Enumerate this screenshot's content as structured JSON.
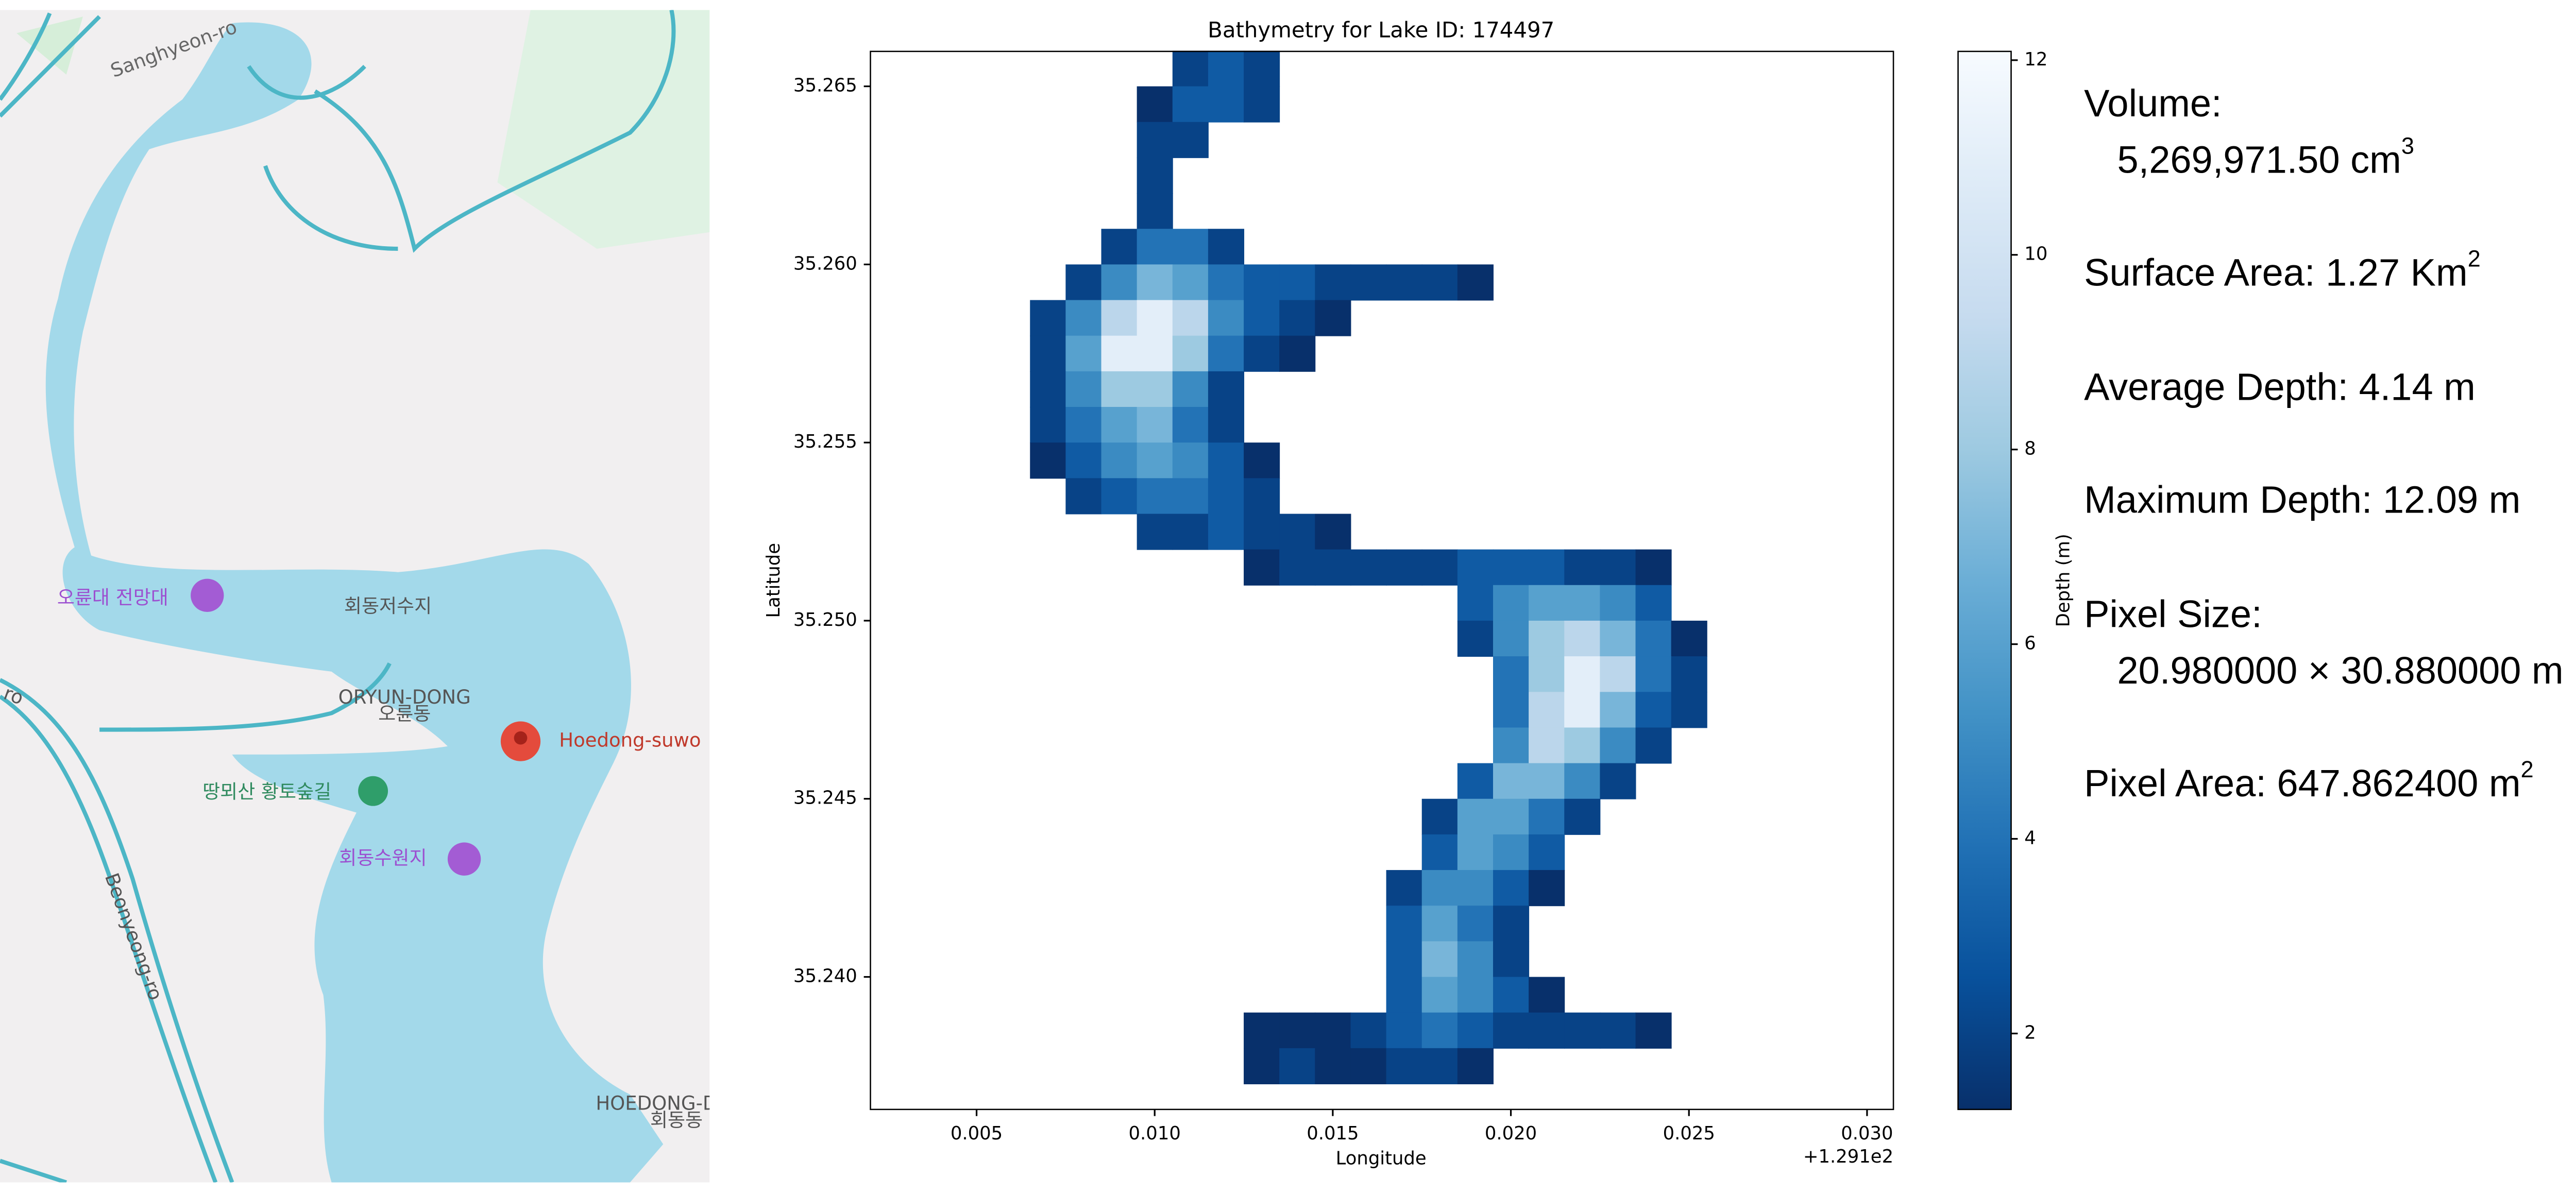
{
  "map": {
    "labels": [
      "Sanghyeon-ro",
      "오륜대 전망대",
      "회동저수지",
      "ORYUN-DONG",
      "오륜동",
      "Hoedong-suwo",
      "땅뫼산 황토숲길",
      "회동수원지",
      "Beonyeong-ro",
      "HOEDONG-D",
      "회동동",
      "ro"
    ]
  },
  "chart_data": {
    "type": "heatmap",
    "title": "Bathymetry for Lake ID: 174497",
    "x_label": "Longitude",
    "y_label": "Latitude",
    "x_offset_label": "+1.291e2",
    "xlim": [
      0.00202,
      0.03074
    ],
    "ylim": [
      35.23628,
      35.26598
    ],
    "xticks": [
      0.005,
      {
        "value": 0.01,
        "label": "0.010"
      },
      0.015,
      {
        "value": 0.02,
        "label": "0.020"
      },
      0.025,
      {
        "value": 0.03,
        "label": "0.030"
      }
    ],
    "yticks": [
      {
        "value": 35.24,
        "label": "35.240"
      },
      35.245,
      {
        "value": 35.25,
        "label": "35.250"
      },
      35.255,
      {
        "value": 35.26,
        "label": "35.260"
      },
      35.265
    ],
    "x": [
      0.007,
      0.008,
      0.009,
      0.01,
      0.011,
      0.012,
      0.013,
      0.014,
      0.015,
      0.016,
      0.017,
      0.018,
      0.019,
      0.02,
      0.021,
      0.022,
      0.023,
      0.024,
      0.025
    ],
    "y": [
      35.2655,
      35.2645,
      35.2635,
      35.2625,
      35.2615,
      35.2605,
      35.2595,
      35.2585,
      35.2575,
      35.2565,
      35.2555,
      35.2545,
      35.2535,
      35.2525,
      35.2515,
      35.2505,
      35.2495,
      35.2485,
      35.2475,
      35.2465,
      35.2455,
      35.2445,
      35.2435,
      35.2425,
      35.2415,
      35.2405,
      35.2395,
      35.2385,
      35.2375
    ],
    "z": [
      [
        null,
        null,
        null,
        null,
        2,
        3,
        2,
        null,
        null,
        null,
        null,
        null,
        null,
        null,
        null,
        null,
        null,
        null,
        null
      ],
      [
        null,
        null,
        null,
        1,
        3,
        3,
        2,
        null,
        null,
        null,
        null,
        null,
        null,
        null,
        null,
        null,
        null,
        null,
        null
      ],
      [
        null,
        null,
        null,
        2,
        2,
        null,
        null,
        null,
        null,
        null,
        null,
        null,
        null,
        null,
        null,
        null,
        null,
        null,
        null
      ],
      [
        null,
        null,
        null,
        2,
        null,
        null,
        null,
        null,
        null,
        null,
        null,
        null,
        null,
        null,
        null,
        null,
        null,
        null,
        null
      ],
      [
        null,
        null,
        null,
        2,
        null,
        null,
        null,
        null,
        null,
        null,
        null,
        null,
        null,
        null,
        null,
        null,
        null,
        null,
        null
      ],
      [
        null,
        null,
        2,
        4,
        4,
        2,
        null,
        null,
        null,
        null,
        null,
        null,
        null,
        null,
        null,
        null,
        null,
        null,
        null
      ],
      [
        null,
        2,
        5,
        7,
        6,
        4,
        3,
        3,
        2,
        2,
        2,
        2,
        1,
        null,
        null,
        null,
        null,
        null,
        null
      ],
      [
        2,
        5,
        9,
        11,
        9,
        5,
        3,
        2,
        1,
        null,
        null,
        null,
        null,
        null,
        null,
        null,
        null,
        null,
        null
      ],
      [
        2,
        6,
        11,
        11,
        8,
        4,
        2,
        1,
        null,
        null,
        null,
        null,
        null,
        null,
        null,
        null,
        null,
        null,
        null
      ],
      [
        2,
        5,
        8,
        8,
        5,
        2,
        null,
        null,
        null,
        null,
        null,
        null,
        null,
        null,
        null,
        null,
        null,
        null,
        null
      ],
      [
        2,
        4,
        6,
        7,
        4,
        2,
        null,
        null,
        null,
        null,
        null,
        null,
        null,
        null,
        null,
        null,
        null,
        null,
        null
      ],
      [
        1,
        3,
        5,
        6,
        5,
        3,
        1,
        null,
        null,
        null,
        null,
        null,
        null,
        null,
        null,
        null,
        null,
        null,
        null
      ],
      [
        null,
        2,
        3,
        4,
        4,
        3,
        2,
        null,
        null,
        null,
        null,
        null,
        null,
        null,
        null,
        null,
        null,
        null,
        null
      ],
      [
        null,
        null,
        null,
        2,
        2,
        3,
        2,
        2,
        1,
        null,
        null,
        null,
        null,
        null,
        null,
        null,
        null,
        null,
        null
      ],
      [
        null,
        null,
        null,
        null,
        null,
        null,
        1,
        2,
        2,
        2,
        2,
        2,
        3,
        3,
        3,
        2,
        2,
        1,
        null
      ],
      [
        null,
        null,
        null,
        null,
        null,
        null,
        null,
        null,
        null,
        null,
        null,
        null,
        3,
        5,
        6,
        6,
        5,
        3,
        null
      ],
      [
        null,
        null,
        null,
        null,
        null,
        null,
        null,
        null,
        null,
        null,
        null,
        null,
        2,
        5,
        8,
        9,
        7,
        4,
        1
      ],
      [
        null,
        null,
        null,
        null,
        null,
        null,
        null,
        null,
        null,
        null,
        null,
        null,
        null,
        4,
        8,
        11,
        9,
        4,
        2
      ],
      [
        null,
        null,
        null,
        null,
        null,
        null,
        null,
        null,
        null,
        null,
        null,
        null,
        null,
        4,
        9,
        11,
        7,
        3,
        2
      ],
      [
        null,
        null,
        null,
        null,
        null,
        null,
        null,
        null,
        null,
        null,
        null,
        null,
        null,
        5,
        9,
        8,
        5,
        2,
        null
      ],
      [
        null,
        null,
        null,
        null,
        null,
        null,
        null,
        null,
        null,
        null,
        null,
        null,
        3,
        7,
        7,
        5,
        2,
        null,
        null
      ],
      [
        null,
        null,
        null,
        null,
        null,
        null,
        null,
        null,
        null,
        null,
        null,
        2,
        6,
        6,
        4,
        2,
        null,
        null,
        null
      ],
      [
        null,
        null,
        null,
        null,
        null,
        null,
        null,
        null,
        null,
        null,
        null,
        3,
        6,
        5,
        3,
        null,
        null,
        null,
        null
      ],
      [
        null,
        null,
        null,
        null,
        null,
        null,
        null,
        null,
        null,
        null,
        2,
        5,
        5,
        3,
        1,
        null,
        null,
        null,
        null
      ],
      [
        null,
        null,
        null,
        null,
        null,
        null,
        null,
        null,
        null,
        null,
        3,
        6,
        4,
        2,
        null,
        null,
        null,
        null,
        null
      ],
      [
        null,
        null,
        null,
        null,
        null,
        null,
        null,
        null,
        null,
        null,
        3,
        7,
        5,
        2,
        null,
        null,
        null,
        null,
        null
      ],
      [
        null,
        null,
        null,
        null,
        null,
        null,
        null,
        null,
        null,
        null,
        3,
        6,
        5,
        3,
        1,
        null,
        null,
        null,
        null
      ],
      [
        null,
        null,
        null,
        null,
        null,
        null,
        1,
        1,
        1,
        2,
        3,
        4,
        3,
        2,
        2,
        2,
        2,
        1,
        null
      ],
      [
        null,
        null,
        null,
        null,
        null,
        null,
        1,
        2,
        1,
        1,
        2,
        2,
        1,
        null,
        null,
        null,
        null,
        null,
        null
      ]
    ],
    "colorbar": {
      "label": "Depth (m)",
      "clim": [
        1.22,
        12.09
      ],
      "ticks": [
        2,
        4,
        6,
        8,
        10,
        12
      ],
      "colormap": [
        "#08306b",
        "#08519c",
        "#2171b5",
        "#4292c6",
        "#6baed6",
        "#9ecae1",
        "#c6dbef",
        "#deebf7",
        "#f7fbff"
      ]
    },
    "stats": [
      {
        "text": "Volume:"
      },
      {
        "text": "5,269,971.50 cm",
        "sup": "3"
      },
      {
        "text": "Surface Area: 1.27 Km",
        "sup": "2"
      },
      {
        "text": "Average Depth: 4.14 m"
      },
      {
        "text": "Maximum Depth: 12.09 m"
      },
      {
        "text": "Pixel Size:"
      },
      {
        "text": "20.980000 × 30.880000 m"
      },
      {
        "text": "Pixel Area: 647.862400 m",
        "sup": "2"
      }
    ]
  }
}
